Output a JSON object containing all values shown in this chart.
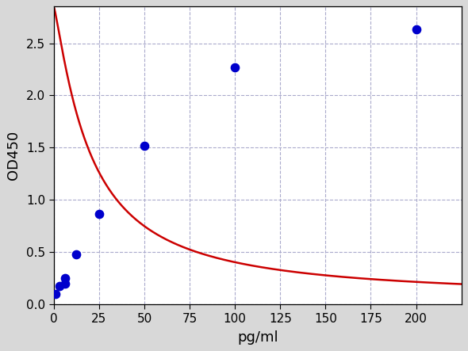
{
  "x_data": [
    1.0,
    3.0,
    6.0,
    6.25,
    12.5,
    25.0,
    50.0,
    100.0,
    200.0
  ],
  "y_data": [
    0.1,
    0.18,
    0.2,
    0.25,
    0.48,
    0.87,
    1.52,
    2.27,
    2.63
  ],
  "xlabel": "pg/ml",
  "ylabel": "OD450",
  "x_ticks": [
    0,
    25,
    50,
    75,
    100,
    125,
    150,
    175,
    200
  ],
  "y_ticks": [
    0.0,
    0.5,
    1.0,
    1.5,
    2.0,
    2.5
  ],
  "xlim": [
    0,
    225
  ],
  "ylim": [
    0,
    2.85
  ],
  "dot_color": "#0000cc",
  "line_color": "#cc0000",
  "figure_background": "#d8d8d8",
  "axes_background": "#ffffff",
  "grid_color": "#aaaacc",
  "dot_size": 55,
  "line_width": 1.8,
  "xlabel_fontsize": 13,
  "ylabel_fontsize": 13,
  "tick_fontsize": 11
}
